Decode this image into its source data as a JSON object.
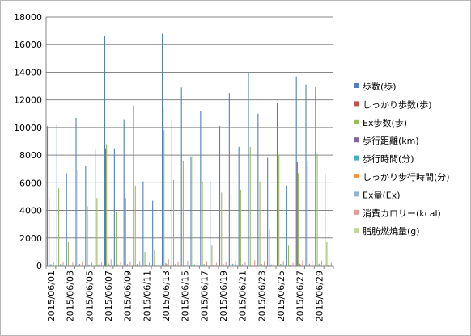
{
  "chart_data": {
    "type": "bar",
    "title": "",
    "xlabel": "",
    "ylabel": "",
    "ylim": [
      0,
      18000
    ],
    "yticks": [
      "0",
      "2000",
      "4000",
      "6000",
      "8000",
      "10000",
      "12000",
      "14000",
      "16000",
      "18000"
    ],
    "grid": "horizontal",
    "legend_position": "right",
    "categories": [
      "2015/06/01",
      "2015/06/02",
      "2015/06/03",
      "2015/06/04",
      "2015/06/05",
      "2015/06/06",
      "2015/06/07",
      "2015/06/08",
      "2015/06/09",
      "2015/06/10",
      "2015/06/11",
      "2015/06/12",
      "2015/06/13",
      "2015/06/14",
      "2015/06/15",
      "2015/06/16",
      "2015/06/17",
      "2015/06/18",
      "2015/06/19",
      "2015/06/20",
      "2015/06/21",
      "2015/06/22",
      "2015/06/23",
      "2015/06/24",
      "2015/06/25",
      "2015/06/26",
      "2015/06/27",
      "2015/06/28",
      "2015/06/29",
      "2015/06/30"
    ],
    "tick_labels": [
      "2015/06/01",
      "2015/06/03",
      "2015/06/05",
      "2015/06/07",
      "2015/06/09",
      "2015/06/11",
      "2015/06/13",
      "2015/06/15",
      "2015/06/17",
      "2015/06/19",
      "2015/06/21",
      "2015/06/23",
      "2015/06/25",
      "2015/06/27",
      "2015/06/29"
    ],
    "series": [
      {
        "name": "歩数(歩)",
        "color": "#4f81bd",
        "values": [
          10100,
          10200,
          6700,
          10700,
          7200,
          8400,
          16600,
          8500,
          10600,
          11600,
          6100,
          4700,
          16800,
          10500,
          12900,
          7900,
          11200,
          6100,
          10100,
          12500,
          8600,
          14000,
          11000,
          7800,
          11800,
          5800,
          13700,
          13100,
          12900,
          6600
        ]
      },
      {
        "name": "しっかり歩数(歩)",
        "color": "#c0504d",
        "values": [
          0,
          0,
          0,
          0,
          0,
          0,
          8500,
          0,
          0,
          0,
          0,
          0,
          11500,
          0,
          0,
          0,
          0,
          0,
          0,
          0,
          0,
          0,
          0,
          0,
          0,
          0,
          7500,
          0,
          0,
          0
        ]
      },
      {
        "name": "Ex歩数(歩)",
        "color": "#9bbb59",
        "values": [
          4900,
          5600,
          1700,
          6900,
          4300,
          4900,
          8800,
          3900,
          4900,
          5800,
          1000,
          1100,
          9800,
          6200,
          7600,
          8000,
          6100,
          1500,
          5300,
          5200,
          5500,
          8600,
          6100,
          2600,
          8000,
          1500,
          6700,
          7600,
          8100,
          1700
        ]
      },
      {
        "name": "歩行距離(km)",
        "color": "#8064a2",
        "values": [
          7,
          7,
          5,
          8,
          5,
          6,
          12,
          6,
          7,
          8,
          4,
          3,
          12,
          7,
          9,
          6,
          8,
          4,
          7,
          9,
          6,
          10,
          8,
          5,
          8,
          4,
          10,
          9,
          9,
          5
        ]
      },
      {
        "name": "歩行時間(分)",
        "color": "#4bacc6",
        "values": [
          100,
          100,
          70,
          110,
          70,
          80,
          170,
          80,
          105,
          115,
          60,
          45,
          170,
          105,
          130,
          80,
          110,
          60,
          100,
          125,
          85,
          140,
          110,
          80,
          120,
          60,
          140,
          130,
          130,
          65
        ]
      },
      {
        "name": "しっかり歩行時間(分)",
        "color": "#f79646",
        "values": [
          0,
          0,
          0,
          0,
          0,
          0,
          80,
          0,
          0,
          0,
          0,
          0,
          110,
          0,
          0,
          0,
          0,
          0,
          0,
          0,
          0,
          0,
          0,
          0,
          0,
          0,
          70,
          0,
          0,
          0
        ]
      },
      {
        "name": "Ex量(Ex)",
        "color": "#95b3d7",
        "values": [
          3,
          3,
          2,
          3,
          2,
          2,
          5,
          2,
          3,
          3,
          1,
          1,
          5,
          3,
          4,
          2,
          3,
          2,
          3,
          3,
          2,
          4,
          3,
          2,
          3,
          2,
          4,
          4,
          4,
          2
        ]
      },
      {
        "name": "消費カロリー(kcal)",
        "color": "#e6999a",
        "values": [
          300,
          300,
          220,
          320,
          230,
          260,
          450,
          260,
          310,
          330,
          200,
          160,
          460,
          310,
          370,
          250,
          320,
          200,
          300,
          350,
          260,
          400,
          320,
          240,
          340,
          190,
          390,
          380,
          370,
          210
        ]
      },
      {
        "name": "脂肪燃焼量(g)",
        "color": "#c4d79b",
        "values": [
          15,
          15,
          10,
          16,
          11,
          12,
          25,
          12,
          15,
          17,
          9,
          7,
          25,
          15,
          19,
          12,
          16,
          9,
          15,
          18,
          13,
          21,
          16,
          12,
          17,
          9,
          20,
          19,
          19,
          10
        ]
      }
    ]
  }
}
